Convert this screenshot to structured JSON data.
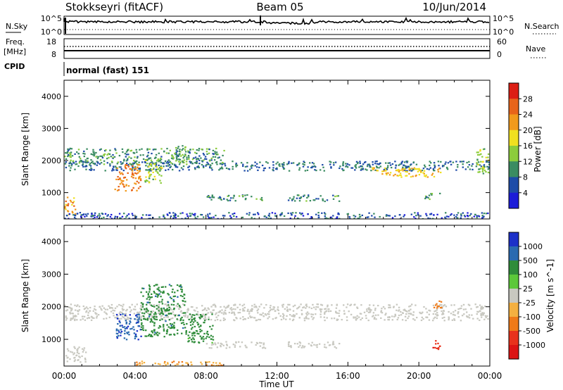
{
  "header": {
    "station": "Stokkseyri (fitACF)",
    "beam": "Beam 05",
    "date": "10/Jun/2014"
  },
  "noise_panel": {
    "left_label": "N.Sky",
    "left_ticks": [
      "10^5",
      "10^0"
    ],
    "right_ticks": [
      "10^5",
      "10^0"
    ],
    "right_label": "N.Search"
  },
  "freq_panel": {
    "left_label_1": "Freq.",
    "left_label_2": "[MHz]",
    "left_ticks": [
      "18",
      "8"
    ],
    "right_ticks": [
      "60",
      "0"
    ],
    "right_label": "Nave"
  },
  "cpid": {
    "label": "CPID",
    "program": "normal (fast) 151"
  },
  "time_axis": {
    "title": "Time UT",
    "ticks": [
      "00:00",
      "04:00",
      "08:00",
      "12:00",
      "16:00",
      "20:00",
      "00:00"
    ]
  },
  "range_axis": {
    "title": "Slant Range [km]",
    "ticks": [
      "1000",
      "2000",
      "3000",
      "4000"
    ]
  },
  "power_colorbar": {
    "title": "Power [dB]",
    "labels": [
      "4",
      "8",
      "12",
      "16",
      "20",
      "24",
      "28"
    ],
    "colors": [
      "#1c1cd8",
      "#1e4ca8",
      "#3b8c62",
      "#8ccc3c",
      "#f0e020",
      "#f29a1c",
      "#e8641a",
      "#dc1e14"
    ]
  },
  "velocity_colorbar": {
    "title": "Velocity [m s^-1]",
    "labels": [
      "1000",
      "500",
      "100",
      "25",
      "-25",
      "-100",
      "-500",
      "-1000"
    ],
    "colors": [
      "#1c30c8",
      "#2a6ab0",
      "#2f8c3a",
      "#5cc83a",
      "#c8c8c0",
      "#f4b040",
      "#ef7a18",
      "#e8321c",
      "#dc1414"
    ]
  },
  "chart_data": [
    {
      "type": "heatmap",
      "title": "Power",
      "xlabel": "Time UT",
      "ylabel": "Slant Range [km]",
      "xlim": [
        0,
        24
      ],
      "ylim": [
        180,
        4500
      ],
      "colorbar_range": [
        0,
        30
      ],
      "x_ticks": [
        "00:00",
        "04:00",
        "08:00",
        "12:00",
        "16:00",
        "20:00",
        "00:00"
      ],
      "y_ticks": [
        1000,
        2000,
        3000,
        4000
      ],
      "features": [
        {
          "t_start": 0.0,
          "t_end": 24.0,
          "range_start": 1700,
          "range_end": 2000,
          "value": 8
        },
        {
          "t_start": 0.0,
          "t_end": 9.0,
          "range_start": 1900,
          "range_end": 2400,
          "value": 10
        },
        {
          "t_start": 0.0,
          "t_end": 0.6,
          "range_start": 300,
          "range_end": 900,
          "value": 22
        },
        {
          "t_start": 0.0,
          "t_end": 24.0,
          "range_start": 200,
          "range_end": 400,
          "value": 6
        },
        {
          "t_start": 2.8,
          "t_end": 4.3,
          "range_start": 1050,
          "range_end": 1900,
          "value": 24
        },
        {
          "t_start": 4.5,
          "t_end": 5.5,
          "range_start": 1300,
          "range_end": 2100,
          "value": 14
        },
        {
          "t_start": 6.2,
          "t_end": 7.0,
          "range_start": 1900,
          "range_end": 2500,
          "value": 12
        },
        {
          "t_start": 8.0,
          "t_end": 11.3,
          "range_start": 750,
          "range_end": 950,
          "value": 10
        },
        {
          "t_start": 12.6,
          "t_end": 15.6,
          "range_start": 750,
          "range_end": 950,
          "value": 9
        },
        {
          "t_start": 17.3,
          "t_end": 21.2,
          "range_start": 1500,
          "range_end": 1800,
          "value": 20
        },
        {
          "t_start": 20.3,
          "t_end": 21.2,
          "range_start": 800,
          "range_end": 1000,
          "value": 10
        },
        {
          "t_start": 23.2,
          "t_end": 24.0,
          "range_start": 1600,
          "range_end": 2400,
          "value": 14
        }
      ]
    },
    {
      "type": "heatmap",
      "title": "Velocity",
      "xlabel": "Time UT",
      "ylabel": "Slant Range [km]",
      "xlim": [
        0,
        24
      ],
      "ylim": [
        180,
        4500
      ],
      "colorbar_range": [
        -1000,
        1000
      ],
      "x_ticks": [
        "00:00",
        "04:00",
        "08:00",
        "12:00",
        "16:00",
        "20:00",
        "00:00"
      ],
      "y_ticks": [
        1000,
        2000,
        3000,
        4000
      ],
      "features": [
        {
          "t_start": 0.0,
          "t_end": 24.0,
          "range_start": 1600,
          "range_end": 2100,
          "value": 0
        },
        {
          "t_start": 2.8,
          "t_end": 4.3,
          "range_start": 1000,
          "range_end": 1800,
          "value": 900
        },
        {
          "t_start": 4.3,
          "t_end": 6.8,
          "range_start": 1100,
          "range_end": 2700,
          "value": 400
        },
        {
          "t_start": 6.8,
          "t_end": 8.4,
          "range_start": 900,
          "range_end": 1800,
          "value": 150
        },
        {
          "t_start": 8.0,
          "t_end": 11.3,
          "range_start": 750,
          "range_end": 950,
          "value": 0
        },
        {
          "t_start": 12.6,
          "t_end": 15.6,
          "range_start": 750,
          "range_end": 950,
          "value": 0
        },
        {
          "t_start": 0.0,
          "t_end": 1.2,
          "range_start": 300,
          "range_end": 800,
          "value": 0
        },
        {
          "t_start": 20.7,
          "t_end": 21.2,
          "range_start": 700,
          "range_end": 1000,
          "value": -800
        },
        {
          "t_start": 20.8,
          "t_end": 21.3,
          "range_start": 1900,
          "range_end": 2200,
          "value": -300
        },
        {
          "t_start": 4.0,
          "t_end": 9.0,
          "range_start": 200,
          "range_end": 350,
          "value": -80
        }
      ]
    }
  ]
}
